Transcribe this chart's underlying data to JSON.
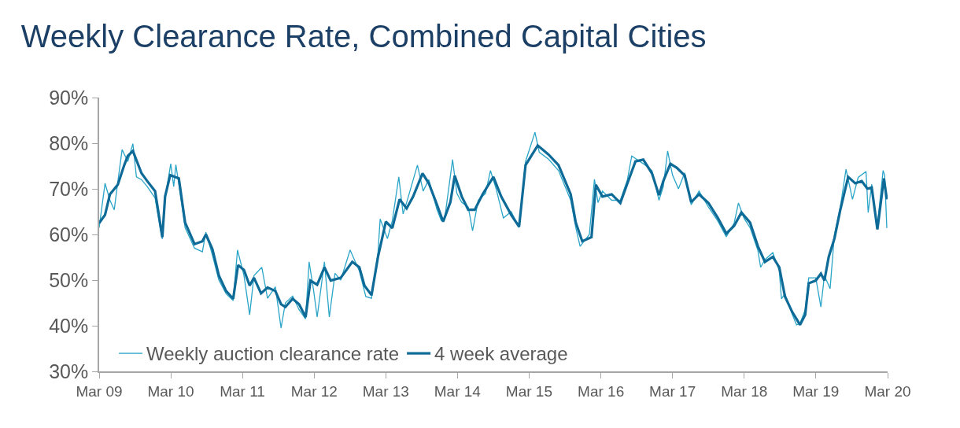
{
  "chart_data": {
    "type": "line",
    "title": "Weekly Clearance Rate, Combined Capital Cities",
    "xlim": [
      "2009-03-01",
      "2020-03-01"
    ],
    "xticks": [
      {
        "value": "2009-03-01",
        "label": "Mar 09"
      },
      {
        "value": "2010-03-01",
        "label": "Mar 10"
      },
      {
        "value": "2011-03-01",
        "label": "Mar 11"
      },
      {
        "value": "2012-03-01",
        "label": "Mar 12"
      },
      {
        "value": "2013-03-01",
        "label": "Mar 13"
      },
      {
        "value": "2014-03-01",
        "label": "Mar 14"
      },
      {
        "value": "2015-03-01",
        "label": "Mar 15"
      },
      {
        "value": "2016-03-01",
        "label": "Mar 16"
      },
      {
        "value": "2017-03-01",
        "label": "Mar 17"
      },
      {
        "value": "2018-03-01",
        "label": "Mar 18"
      },
      {
        "value": "2019-03-01",
        "label": "Mar 19"
      },
      {
        "value": "2020-03-01",
        "label": "Mar 20"
      }
    ],
    "ylim": [
      30,
      90
    ],
    "yticks": [
      {
        "value": 30,
        "label": "30%"
      },
      {
        "value": 40,
        "label": "40%"
      },
      {
        "value": 50,
        "label": "50%"
      },
      {
        "value": 60,
        "label": "60%"
      },
      {
        "value": 70,
        "label": "70%"
      },
      {
        "value": 80,
        "label": "80%"
      },
      {
        "value": 90,
        "label": "90%"
      }
    ],
    "legend": "bottom left",
    "marker": "none",
    "series": [
      {
        "name": "Weekly auction clearance rate",
        "color": "#2aa5c8",
        "x": [
          "2009-03-01",
          "2009-03-31",
          "2009-04-25",
          "2009-05-17",
          "2009-06-04",
          "2009-06-26",
          "2009-07-25",
          "2009-08-20",
          "2009-09-07",
          "2009-10-03",
          "2009-11-01",
          "2009-12-11",
          "2010-01-06",
          "2010-01-17",
          "2010-01-31",
          "2010-03-01",
          "2010-03-16",
          "2010-03-27",
          "2010-04-11",
          "2010-05-13",
          "2010-06-30",
          "2010-08-09",
          "2010-08-27",
          "2010-09-29",
          "2010-11-01",
          "2010-12-08",
          "2011-01-13",
          "2011-02-04",
          "2011-03-09",
          "2011-04-07",
          "2011-04-29",
          "2011-06-08",
          "2011-07-07",
          "2011-08-16",
          "2011-09-14",
          "2011-10-06",
          "2011-11-12",
          "2011-12-15",
          "2012-01-17",
          "2012-02-04",
          "2012-02-26",
          "2012-03-16",
          "2012-04-22",
          "2012-05-17",
          "2012-06-15",
          "2012-07-14",
          "2012-08-31",
          "2012-10-17",
          "2012-11-19",
          "2012-12-18",
          "2013-01-20",
          "2013-01-31",
          "2013-03-09",
          "2013-04-03",
          "2013-05-06",
          "2013-05-28",
          "2013-06-15",
          "2013-08-09",
          "2013-09-07",
          "2013-10-06",
          "2013-11-16",
          "2013-12-08",
          "2013-12-26",
          "2014-02-04",
          "2014-02-26",
          "2014-03-23",
          "2014-04-25",
          "2014-05-17",
          "2014-06-15",
          "2014-07-22",
          "2014-08-16",
          "2014-09-14",
          "2014-10-21",
          "2014-11-30",
          "2015-01-09",
          "2015-02-11",
          "2015-03-31",
          "2015-04-22",
          "2015-06-08",
          "2015-07-29",
          "2015-09-29",
          "2015-10-25",
          "2015-11-16",
          "2016-01-02",
          "2016-01-28",
          "2016-02-15",
          "2016-03-09",
          "2016-04-25",
          "2016-06-08",
          "2016-07-14",
          "2016-08-05",
          "2016-10-03",
          "2016-11-16",
          "2016-12-22",
          "2017-01-13",
          "2017-02-04",
          "2017-03-01",
          "2017-03-31",
          "2017-05-02",
          "2017-06-04",
          "2017-07-14",
          "2017-08-31",
          "2017-10-17",
          "2017-11-30",
          "2018-01-09",
          "2018-01-31",
          "2018-03-01",
          "2018-03-31",
          "2018-05-10",
          "2018-05-24",
          "2018-06-15",
          "2018-07-25",
          "2018-08-27",
          "2018-09-07",
          "2018-09-25",
          "2018-11-01",
          "2018-11-23",
          "2018-12-11",
          "2019-01-06",
          "2019-01-24",
          "2019-03-01",
          "2019-03-27",
          "2019-04-14",
          "2019-05-13",
          "2019-06-04",
          "2019-07-04",
          "2019-08-02",
          "2019-09-04",
          "2019-10-03",
          "2019-11-12",
          "2019-11-23",
          "2019-12-11",
          "2019-12-26",
          "2020-01-09",
          "2020-02-07",
          "2020-02-15",
          "2020-02-26"
        ],
        "values": [
          61.5,
          71.2,
          67.5,
          65.4,
          71.5,
          78.6,
          76.0,
          79.9,
          72.6,
          72.0,
          70.5,
          68.0,
          61.4,
          59.0,
          68.0,
          75.5,
          70.5,
          75.3,
          71.0,
          61.5,
          57.0,
          56.2,
          60.5,
          55.5,
          50.0,
          47.0,
          45.5,
          56.6,
          51.0,
          42.4,
          51.0,
          52.8,
          46.0,
          48.5,
          39.5,
          45.0,
          46.5,
          43.5,
          41.5,
          54.0,
          48.0,
          41.9,
          54.0,
          41.9,
          51.5,
          50.0,
          56.6,
          52.0,
          46.4,
          46.0,
          56.0,
          63.4,
          59.1,
          63.0,
          72.6,
          64.5,
          67.0,
          75.2,
          69.5,
          72.0,
          65.5,
          63.1,
          63.5,
          76.4,
          69.0,
          67.0,
          66.0,
          60.8,
          67.5,
          69.0,
          74.0,
          70.0,
          63.6,
          65.0,
          61.5,
          76.0,
          82.4,
          78.0,
          76.5,
          74.0,
          67.5,
          61.5,
          57.4,
          60.0,
          72.1,
          67.0,
          69.5,
          67.5,
          67.5,
          72.0,
          77.2,
          75.5,
          74.0,
          67.5,
          70.5,
          78.3,
          73.0,
          70.0,
          73.5,
          66.5,
          69.5,
          66.0,
          63.0,
          59.5,
          62.5,
          66.9,
          63.5,
          61.5,
          56.5,
          52.8,
          54.5,
          56.0,
          52.0,
          45.9,
          47.0,
          42.5,
          40.2,
          40.5,
          43.5,
          50.5,
          50.5,
          44.1,
          51.0,
          48.1,
          60.0,
          66.0,
          74.3,
          67.7,
          72.5,
          73.8,
          64.8,
          71.0,
          65.0,
          62.0,
          74.0,
          73.0,
          61.4
        ]
      },
      {
        "name": "4 week average",
        "color": "#0e6a97",
        "x": [
          "2009-03-01",
          "2009-03-31",
          "2009-04-25",
          "2009-06-04",
          "2009-07-07",
          "2009-07-25",
          "2009-08-20",
          "2009-10-03",
          "2009-11-01",
          "2009-12-11",
          "2010-01-17",
          "2010-01-31",
          "2010-02-26",
          "2010-04-11",
          "2010-05-13",
          "2010-06-30",
          "2010-08-09",
          "2010-08-27",
          "2010-09-29",
          "2010-11-01",
          "2010-12-08",
          "2011-01-13",
          "2011-02-07",
          "2011-03-09",
          "2011-04-07",
          "2011-04-29",
          "2011-06-04",
          "2011-07-07",
          "2011-08-16",
          "2011-09-14",
          "2011-10-06",
          "2011-11-12",
          "2011-12-15",
          "2012-01-17",
          "2012-02-11",
          "2012-03-16",
          "2012-04-22",
          "2012-05-24",
          "2012-07-14",
          "2012-09-11",
          "2012-10-17",
          "2012-11-12",
          "2012-12-18",
          "2013-01-20",
          "2013-03-01",
          "2013-04-03",
          "2013-05-10",
          "2013-06-15",
          "2013-07-18",
          "2013-09-04",
          "2013-10-06",
          "2013-11-16",
          "2013-12-18",
          "2014-01-24",
          "2014-02-15",
          "2014-03-23",
          "2014-04-25",
          "2014-05-28",
          "2014-07-07",
          "2014-08-31",
          "2014-10-10",
          "2014-11-30",
          "2015-01-09",
          "2015-02-11",
          "2015-04-14",
          "2015-06-08",
          "2015-07-29",
          "2015-09-29",
          "2015-10-25",
          "2015-11-27",
          "2016-01-13",
          "2016-02-04",
          "2016-03-09",
          "2016-04-25",
          "2016-06-08",
          "2016-07-14",
          "2016-08-24",
          "2016-10-03",
          "2016-11-16",
          "2016-12-22",
          "2017-01-13",
          "2017-02-18",
          "2017-03-23",
          "2017-05-02",
          "2017-06-04",
          "2017-07-14",
          "2017-08-31",
          "2017-10-17",
          "2017-11-30",
          "2018-01-09",
          "2018-02-15",
          "2018-03-31",
          "2018-05-10",
          "2018-06-15",
          "2018-07-25",
          "2018-08-27",
          "2018-09-25",
          "2018-11-01",
          "2018-12-11",
          "2019-01-06",
          "2019-01-24",
          "2019-03-01",
          "2019-03-27",
          "2019-04-14",
          "2019-05-06",
          "2019-06-04",
          "2019-07-04",
          "2019-08-13",
          "2019-09-18",
          "2019-10-21",
          "2019-11-19",
          "2019-12-11",
          "2020-01-09",
          "2020-02-11",
          "2020-02-26"
        ],
        "values": [
          62.5,
          64.3,
          68.8,
          70.9,
          75.2,
          77.2,
          78.3,
          73.4,
          71.7,
          69.5,
          59.4,
          68.3,
          73.0,
          72.3,
          62.6,
          57.9,
          58.5,
          60.0,
          56.8,
          51.0,
          47.6,
          45.9,
          53.3,
          52.2,
          48.8,
          50.5,
          47.1,
          48.4,
          47.6,
          44.7,
          44.1,
          45.9,
          44.7,
          41.9,
          49.9,
          49.0,
          52.8,
          49.9,
          50.5,
          54.0,
          52.8,
          48.8,
          46.7,
          55.1,
          62.8,
          61.4,
          67.7,
          65.7,
          68.3,
          73.4,
          71.2,
          66.6,
          62.8,
          67.1,
          72.9,
          68.3,
          65.4,
          65.4,
          68.8,
          72.6,
          68.3,
          64.3,
          61.7,
          75.2,
          79.5,
          77.5,
          75.2,
          68.8,
          62.6,
          58.5,
          59.4,
          70.9,
          68.3,
          68.8,
          66.9,
          71.2,
          76.0,
          76.4,
          73.4,
          68.6,
          71.7,
          75.5,
          74.6,
          72.9,
          67.1,
          68.8,
          66.9,
          63.7,
          60.2,
          61.9,
          64.8,
          62.6,
          57.4,
          54.0,
          55.1,
          52.8,
          46.4,
          43.0,
          40.2,
          42.4,
          49.3,
          49.9,
          51.4,
          49.9,
          55.1,
          59.1,
          65.4,
          72.6,
          71.2,
          71.7,
          70.0,
          70.3,
          61.1,
          72.3,
          67.7
        ]
      }
    ]
  }
}
